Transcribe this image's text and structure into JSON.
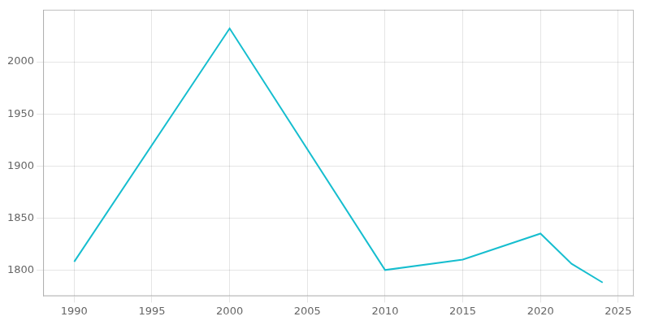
{
  "chart_data": {
    "type": "line",
    "x": [
      1990,
      2000,
      2010,
      2015,
      2020,
      2022,
      2024
    ],
    "values": [
      1808,
      2032,
      1800,
      1810,
      1835,
      1806,
      1788
    ],
    "color": "#17becf",
    "xlim": [
      1988,
      2026
    ],
    "ylim": [
      1775,
      2050
    ],
    "xticks": [
      1990,
      1995,
      2000,
      2005,
      2010,
      2015,
      2020,
      2025
    ],
    "yticks": [
      1800,
      1850,
      1900,
      1950,
      2000
    ],
    "grid": true
  }
}
